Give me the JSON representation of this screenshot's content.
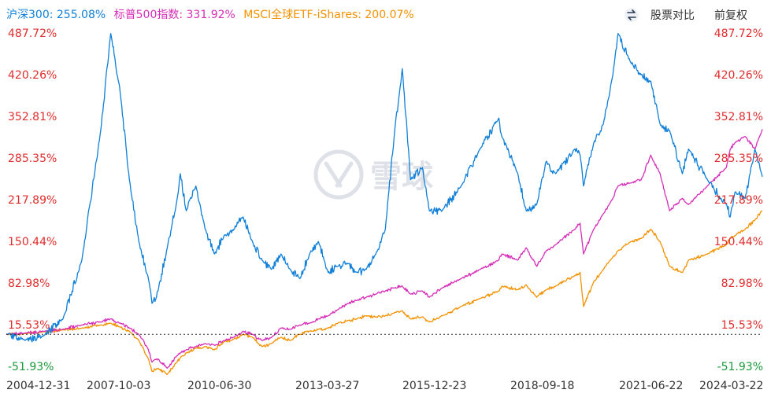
{
  "header": {
    "compare_label": "股票对比",
    "adjust_label": "前复权",
    "toggle_icon": "swap-arrows-icon",
    "watermark_text": "雪球",
    "watermark_icon": "snowball-logo-icon"
  },
  "chart_data": {
    "type": "line",
    "legend_position": "top-left",
    "grid": false,
    "baseline": 0,
    "x": [
      "2004-12-31",
      "2005-06-30",
      "2005-12-30",
      "2006-06-30",
      "2006-12-29",
      "2007-06-29",
      "2007-10-03",
      "2007-12-28",
      "2008-03-31",
      "2008-06-30",
      "2008-09-30",
      "2008-11-04",
      "2008-12-31",
      "2009-03-31",
      "2009-06-30",
      "2009-08-04",
      "2009-09-30",
      "2009-12-31",
      "2010-03-31",
      "2010-06-30",
      "2010-09-30",
      "2010-12-31",
      "2011-03-31",
      "2011-06-30",
      "2011-09-30",
      "2011-12-30",
      "2012-03-30",
      "2012-06-29",
      "2012-09-28",
      "2012-12-31",
      "2013-03-27",
      "2013-06-28",
      "2013-09-30",
      "2013-12-31",
      "2014-03-31",
      "2014-06-30",
      "2014-09-30",
      "2014-12-31",
      "2015-03-31",
      "2015-06-12",
      "2015-08-31",
      "2015-12-23",
      "2016-02-29",
      "2016-06-30",
      "2016-12-30",
      "2017-06-30",
      "2017-12-29",
      "2018-01-26",
      "2018-06-29",
      "2018-09-18",
      "2018-12-28",
      "2019-03-29",
      "2019-06-28",
      "2019-12-31",
      "2020-02-19",
      "2020-03-23",
      "2020-06-30",
      "2020-09-30",
      "2020-12-31",
      "2021-02-18",
      "2021-06-22",
      "2021-09-30",
      "2021-12-31",
      "2022-03-31",
      "2022-06-30",
      "2022-10-31",
      "2022-12-30",
      "2023-06-30",
      "2023-12-29",
      "2024-02-05",
      "2024-03-22",
      "2024-06-28",
      "2024-09-30",
      "2024-12-10"
    ],
    "series": [
      {
        "name": "沪深300",
        "color": "#0f7fd8",
        "last_label": "沪深300: 255.08%",
        "values": [
          0,
          -10,
          -2,
          25,
          120,
          330,
          487,
          400,
          250,
          150,
          90,
          50,
          70,
          140,
          215,
          260,
          200,
          240,
          170,
          130,
          160,
          170,
          190,
          150,
          120,
          105,
          130,
          105,
          90,
          130,
          150,
          100,
          110,
          115,
          100,
          105,
          130,
          170,
          330,
          430,
          250,
          270,
          200,
          200,
          240,
          300,
          350,
          320,
          260,
          200,
          210,
          280,
          260,
          300,
          290,
          240,
          310,
          340,
          420,
          487,
          440,
          420,
          410,
          340,
          330,
          260,
          300,
          250,
          210,
          190,
          230,
          220,
          300,
          255.08
        ]
      },
      {
        "name": "标普500指数",
        "color": "#d62eb8",
        "last_label": "标普500指数: 331.92%",
        "values": [
          0,
          2,
          5,
          8,
          15,
          20,
          25,
          18,
          10,
          0,
          -25,
          -45,
          -40,
          -55,
          -35,
          -30,
          -25,
          -20,
          -15,
          -18,
          -10,
          -5,
          5,
          0,
          -10,
          -5,
          10,
          8,
          15,
          18,
          25,
          30,
          40,
          50,
          55,
          60,
          65,
          70,
          75,
          78,
          65,
          70,
          60,
          75,
          90,
          105,
          120,
          130,
          120,
          140,
          110,
          135,
          145,
          170,
          180,
          130,
          170,
          195,
          220,
          240,
          245,
          250,
          290,
          260,
          200,
          220,
          210,
          240,
          270,
          300,
          310,
          320,
          300,
          331.92
        ]
      },
      {
        "name": "MSCI全球ETF-iShares",
        "color": "#f39200",
        "last_label": "MSCI全球ETF-iShares: 200.07%",
        "values": [
          0,
          1,
          4,
          7,
          10,
          15,
          18,
          12,
          5,
          -10,
          -40,
          -60,
          -55,
          -65,
          -45,
          -38,
          -30,
          -22,
          -20,
          -25,
          -12,
          -8,
          0,
          -5,
          -20,
          -15,
          -5,
          -10,
          0,
          5,
          8,
          10,
          18,
          22,
          25,
          30,
          28,
          30,
          35,
          38,
          25,
          28,
          20,
          30,
          45,
          58,
          70,
          78,
          72,
          80,
          60,
          72,
          78,
          95,
          100,
          45,
          85,
          105,
          125,
          135,
          150,
          155,
          170,
          150,
          110,
          100,
          120,
          130,
          145,
          155,
          160,
          170,
          185,
          200.07
        ]
      }
    ],
    "y_ticks": [
      "487.72%",
      "420.26%",
      "352.81%",
      "285.35%",
      "217.89%",
      "150.44%",
      "82.98%",
      "15.53%",
      "-51.93%"
    ],
    "y_tick_values": [
      487.72,
      420.26,
      352.81,
      285.35,
      217.89,
      150.44,
      82.98,
      15.53,
      -51.93
    ],
    "x_ticks": [
      "2004-12-31",
      "2007-10-03",
      "2010-06-30",
      "2013-03-27",
      "2015-12-23",
      "2018-09-18",
      "2021-06-22",
      "2024-03-22"
    ],
    "ylim": [
      -51.93,
      487.72
    ],
    "xlim": [
      "2004-12-31",
      "2024-12-10"
    ],
    "tick_colors": {
      "positive": "#e12d2d",
      "negative": "#1a9a3a"
    }
  }
}
